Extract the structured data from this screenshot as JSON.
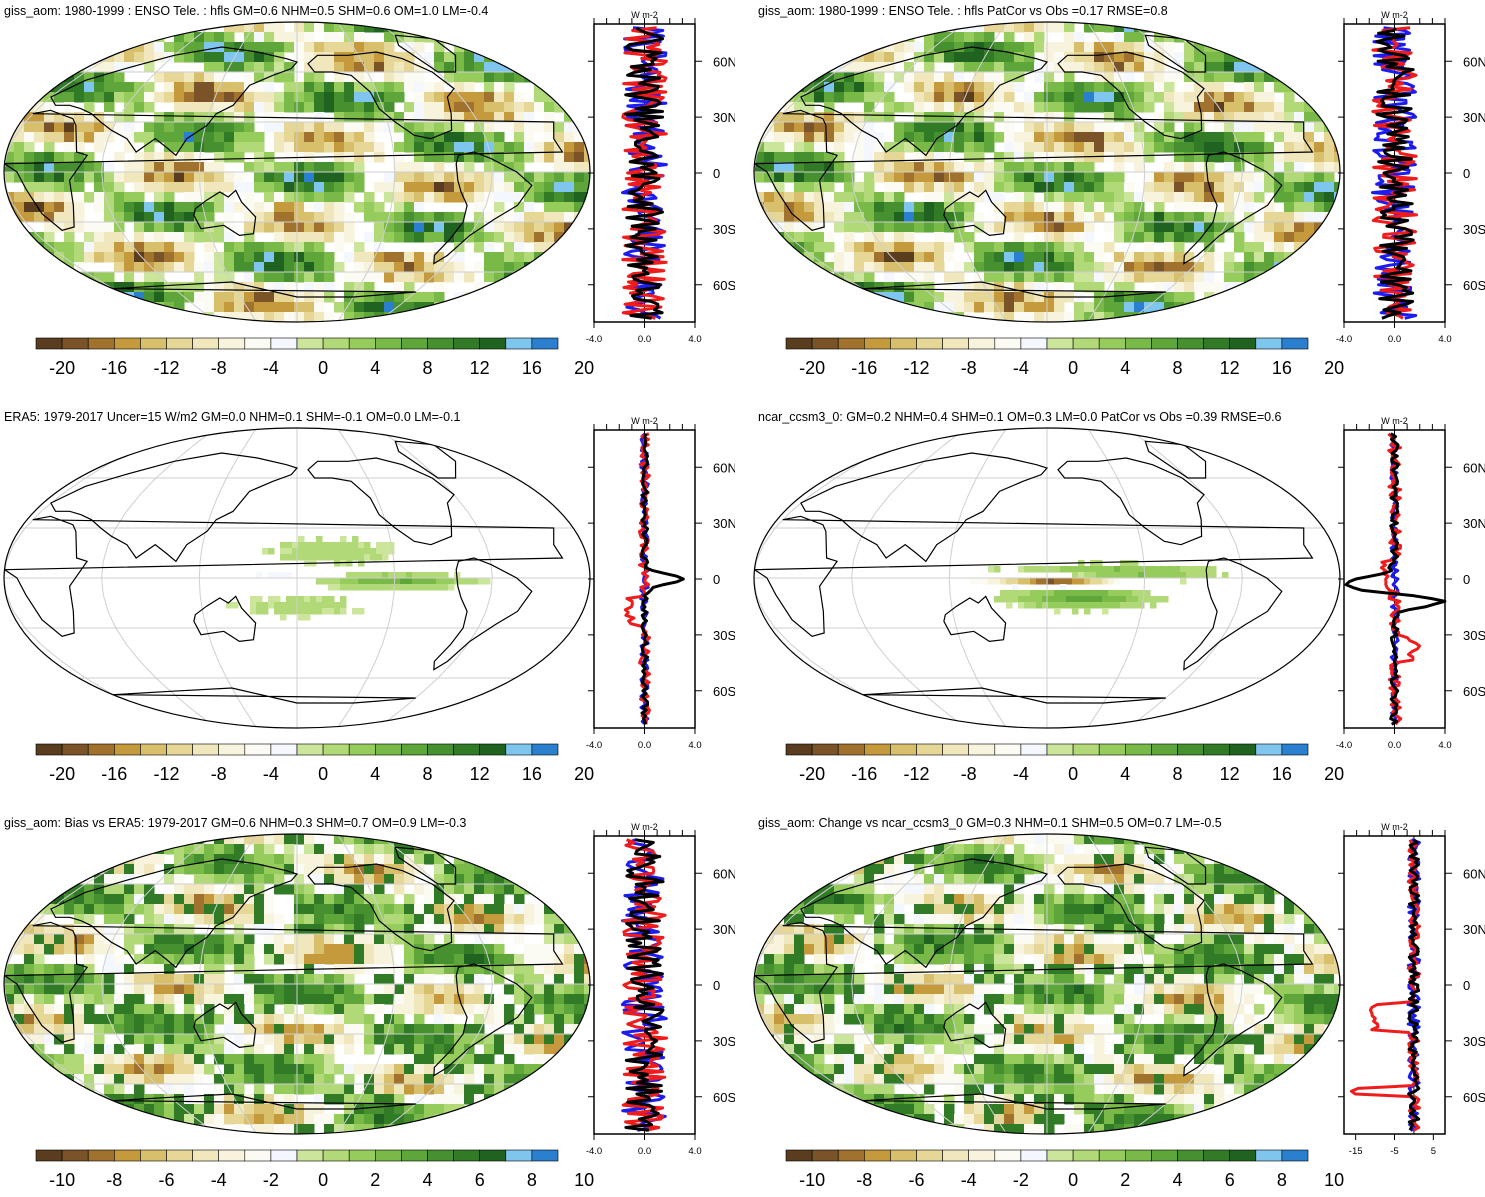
{
  "panels": [
    {
      "title": "giss_aom: 1980-1999 : ENSO Tele. : hfls GM=0.6 NHM=0.5 SHM=0.6 OM=1.0 LM=-0.4",
      "map_style": "blocky",
      "colorbar_labels": [
        "-20",
        "-16",
        "-12",
        "-8",
        "-4",
        "0",
        "4",
        "8",
        "12",
        "16",
        "20"
      ],
      "profile_unit": "W m-2",
      "profile_x_ticks": [
        "-4.0",
        "0.0",
        "4.0"
      ],
      "profile_range": [
        -4,
        4
      ],
      "lat_ticks": [
        "60N",
        "30N",
        "0",
        "30S",
        "60S"
      ],
      "profile_style": "noisy"
    },
    {
      "title": "giss_aom: 1980-1999 : ENSO Tele. : hfls PatCor vs Obs =0.17 RMSE=0.8",
      "map_style": "blocky",
      "colorbar_labels": [
        "-20",
        "-16",
        "-12",
        "-8",
        "-4",
        "0",
        "4",
        "8",
        "12",
        "16",
        "20"
      ],
      "profile_unit": "W m-2",
      "profile_x_ticks": [
        "-4.0",
        "0.0",
        "4.0"
      ],
      "profile_range": [
        -4,
        4
      ],
      "lat_ticks": [
        "60N",
        "30N",
        "0",
        "30S",
        "60S"
      ],
      "profile_style": "noisy"
    },
    {
      "title": "ERA5: 1979-2017 Uncer=15 W/m2 GM=0.0 NHM=0.1 SHM=-0.1 OM=0.0 LM=-0.1",
      "map_style": "smooth",
      "colorbar_labels": [
        "-20",
        "-16",
        "-12",
        "-8",
        "-4",
        "0",
        "4",
        "8",
        "12",
        "16",
        "20"
      ],
      "profile_unit": "W m-2",
      "profile_x_ticks": [
        "-4.0",
        "0.0",
        "4.0"
      ],
      "profile_range": [
        -4,
        4
      ],
      "lat_ticks": [
        "60N",
        "30N",
        "0",
        "30S",
        "60S"
      ],
      "profile_style": "calm"
    },
    {
      "title": "ncar_ccsm3_0: GM=0.2 NHM=0.4 SHM=0.1 OM=0.3 LM=0.0 PatCor vs Obs =0.39 RMSE=0.6",
      "map_style": "model",
      "colorbar_labels": [
        "-20",
        "-16",
        "-12",
        "-8",
        "-4",
        "0",
        "4",
        "8",
        "12",
        "16",
        "20"
      ],
      "profile_unit": "W m-2",
      "profile_x_ticks": [
        "-4.0",
        "0.0",
        "4.0"
      ],
      "profile_range": [
        -4,
        4
      ],
      "lat_ticks": [
        "60N",
        "30N",
        "0",
        "30S",
        "60S"
      ],
      "profile_style": "model"
    },
    {
      "title": "giss_aom: Bias vs ERA5: 1979-2017 GM=0.6 NHM=0.3 SHM=0.7 OM=0.9 LM=-0.3",
      "map_style": "bias",
      "colorbar_labels": [
        "-10",
        "-8",
        "-6",
        "-4",
        "-2",
        "0",
        "2",
        "4",
        "6",
        "8",
        "10"
      ],
      "profile_unit": "W m-2",
      "profile_x_ticks": [
        "-4.0",
        "0.0",
        "4.0"
      ],
      "profile_range": [
        -4,
        4
      ],
      "lat_ticks": [
        "60N",
        "30N",
        "0",
        "30S",
        "60S"
      ],
      "profile_style": "noisy"
    },
    {
      "title": "giss_aom: Change vs ncar_ccsm3_0 GM=0.3 NHM=0.1 SHM=0.5 OM=0.7 LM=-0.5",
      "map_style": "bias",
      "colorbar_labels": [
        "-15",
        "-5",
        "5"
      ],
      "profile_unit": "W m-2",
      "profile_x_ticks": [
        "-15",
        "-5",
        "5"
      ],
      "profile_range": [
        -18,
        8
      ],
      "colorbar_labels_main": [
        "-10",
        "-8",
        "-6",
        "-4",
        "-2",
        "0",
        "2",
        "4",
        "6",
        "8",
        "10"
      ],
      "lat_ticks": [
        "60N",
        "30N",
        "0",
        "30S",
        "60S"
      ],
      "profile_style": "change"
    }
  ],
  "colors": {
    "palette": [
      "#5a3d1e",
      "#7a5428",
      "#a0722e",
      "#c49a3c",
      "#d8bf6c",
      "#e6d797",
      "#f0e8bc",
      "#f7f3dc",
      "#fbfbf3",
      "#f5f7ff",
      "#cbe69a",
      "#b1d977",
      "#96cc5c",
      "#79b948",
      "#5ea53a",
      "#46902f",
      "#317a26",
      "#206320",
      "#7ec6ee",
      "#2a7fcf"
    ],
    "profile_blue": "#1c1cf0",
    "profile_red": "#f01c1c",
    "profile_black": "#000000"
  }
}
